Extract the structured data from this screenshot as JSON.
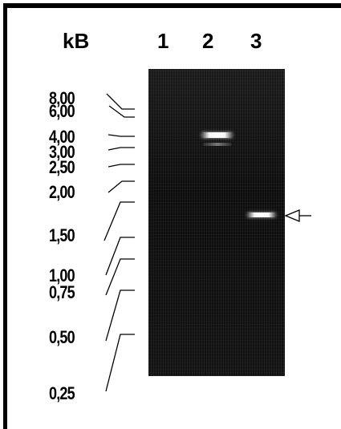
{
  "header": {
    "unit": "kB",
    "lanes": [
      "1",
      "2",
      "3"
    ]
  },
  "markers": [
    {
      "label": "8,00"
    },
    {
      "label": "6,00"
    },
    {
      "label": "4,00"
    },
    {
      "label": "3,00"
    },
    {
      "label": "2,50"
    },
    {
      "label": "2,00"
    },
    {
      "label": "1,50"
    },
    {
      "label": "1,00"
    },
    {
      "label": "0,75"
    },
    {
      "label": "0,50"
    },
    {
      "label": "0,25"
    }
  ],
  "gel": {
    "background_color": "#0a0a0a",
    "band_color": "#ffffff"
  },
  "indicator": {
    "icon": "arrow-left-icon",
    "lane": "3"
  }
}
